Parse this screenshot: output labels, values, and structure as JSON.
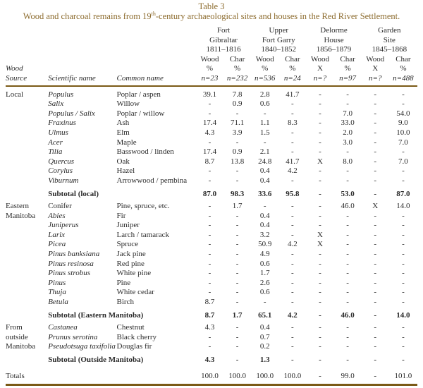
{
  "colors": {
    "accent": "#8d6c2f",
    "rule": "#7b5a16",
    "text": "#2a2a2a"
  },
  "page": {
    "title": "Table 3",
    "subtitle_pre": "Wood and charcoal remains from 19",
    "subtitle_sup": "th",
    "subtitle_post": "-century archaeological sites and houses in the Red River Settlement."
  },
  "header": {
    "wood_label": "Wood",
    "source_label": "Source",
    "scientific_label": "Scientific name",
    "common_label": "Common name",
    "sites": [
      {
        "line1": "Fort",
        "line2": "Gibraltar",
        "years": "1811–1816",
        "cols": [
          {
            "type": "Wood",
            "unit": "%",
            "n": "n=23"
          },
          {
            "type": "Char",
            "unit": "%",
            "n": "n=232"
          }
        ]
      },
      {
        "line1": "Upper",
        "line2": "Fort Garry",
        "years": "1840–1852",
        "cols": [
          {
            "type": "Wood",
            "unit": "%",
            "n": "n=536"
          },
          {
            "type": "Char",
            "unit": "%",
            "n": "n=24"
          }
        ]
      },
      {
        "line1": "Delorme",
        "line2": "House",
        "years": "1856–1879",
        "cols": [
          {
            "type": "Wood",
            "unit": "X",
            "n": "n=?"
          },
          {
            "type": "Char",
            "unit": "%",
            "n": "n=97"
          }
        ]
      },
      {
        "line1": "Garden",
        "line2": "Site",
        "years": "1845–1868",
        "cols": [
          {
            "type": "Wood",
            "unit": "X",
            "n": "n=?"
          },
          {
            "type": "Char",
            "unit": "%",
            "n": "n=488"
          }
        ]
      }
    ]
  },
  "body": {
    "rows": [
      {
        "style": "species",
        "source": "Local",
        "sci": "Populus",
        "italic": true,
        "common": "Poplar / aspen",
        "values": [
          "39.1",
          "7.8",
          "2.8",
          "41.7",
          "-",
          "-",
          "-",
          "-"
        ]
      },
      {
        "style": "species",
        "source": "",
        "sci": "Salix",
        "italic": true,
        "common": "Willow",
        "values": [
          "-",
          "0.9",
          "0.6",
          "-",
          "-",
          "-",
          "-",
          "-"
        ]
      },
      {
        "style": "species",
        "source": "",
        "sci": "Populus / Salix",
        "italic": true,
        "common": "Poplar / willow",
        "values": [
          "-",
          "-",
          "-",
          "-",
          "-",
          "7.0",
          "-",
          "54.0"
        ]
      },
      {
        "style": "species",
        "source": "",
        "sci": "Fraxinus",
        "italic": true,
        "common": "Ash",
        "values": [
          "17.4",
          "71.1",
          "1.1",
          "8.3",
          "-",
          "33.0",
          "-",
          "9.0"
        ]
      },
      {
        "style": "species",
        "source": "",
        "sci": "Ulmus",
        "italic": true,
        "common": "Elm",
        "values": [
          "4.3",
          "3.9",
          "1.5",
          "-",
          "-",
          "2.0",
          "-",
          "10.0"
        ]
      },
      {
        "style": "species",
        "source": "",
        "sci": "Acer",
        "italic": true,
        "common": "Maple",
        "values": [
          "-",
          "-",
          "-",
          "-",
          "-",
          "3.0",
          "-",
          "7.0"
        ]
      },
      {
        "style": "species",
        "source": "",
        "sci": "Tilia",
        "italic": true,
        "common": "Basswood / linden",
        "values": [
          "17.4",
          "0.9",
          "2.1",
          "-",
          "-",
          "-",
          "-",
          "-"
        ]
      },
      {
        "style": "species",
        "source": "",
        "sci": "Quercus",
        "italic": true,
        "common": "Oak",
        "values": [
          "8.7",
          "13.8",
          "24.8",
          "41.7",
          "X",
          "8.0",
          "-",
          "7.0"
        ]
      },
      {
        "style": "species",
        "source": "",
        "sci": "Corylus",
        "italic": true,
        "common": "Hazel",
        "values": [
          "-",
          "-",
          "0.4",
          "4.2",
          "-",
          "-",
          "-",
          "-"
        ]
      },
      {
        "style": "species",
        "source": "",
        "sci": "Viburnum",
        "italic": true,
        "common": "Arrowwood / pembina",
        "values": [
          "-",
          "-",
          "0.4",
          "-",
          "-",
          "-",
          "-",
          "-"
        ]
      },
      {
        "style": "subtotal",
        "source": "",
        "label": "Subtotal (local)",
        "values": [
          "87.0",
          "98.3",
          "33.6",
          "95.8",
          "-",
          "53.0",
          "-",
          "87.0"
        ]
      },
      {
        "style": "species",
        "source": "Eastern",
        "sci": "Conifer",
        "italic": false,
        "common": "Pine, spruce, etc.",
        "values": [
          "-",
          "1.7",
          "-",
          "-",
          "-",
          "46.0",
          "X",
          "14.0"
        ]
      },
      {
        "style": "species",
        "source": "Manitoba",
        "sci": "Abies",
        "italic": true,
        "common": "Fir",
        "values": [
          "-",
          "-",
          "0.4",
          "-",
          "-",
          "-",
          "-",
          "-"
        ]
      },
      {
        "style": "species",
        "source": "",
        "sci": "Juniperus",
        "italic": true,
        "common": "Juniper",
        "values": [
          "-",
          "-",
          "0.4",
          "-",
          "-",
          "-",
          "-",
          "-"
        ]
      },
      {
        "style": "species",
        "source": "",
        "sci": "Larix",
        "italic": true,
        "common": "Larch / tamarack",
        "values": [
          "-",
          "-",
          "3.2",
          "-",
          "X",
          "-",
          "-",
          "-"
        ]
      },
      {
        "style": "species",
        "source": "",
        "sci": "Picea",
        "italic": true,
        "common": "Spruce",
        "values": [
          "-",
          "-",
          "50.9",
          "4.2",
          "X",
          "-",
          "-",
          "-"
        ]
      },
      {
        "style": "species",
        "source": "",
        "sci": "Pinus banksiana",
        "italic": true,
        "common": "Jack pine",
        "values": [
          "-",
          "-",
          "4.9",
          "-",
          "-",
          "-",
          "-",
          "-"
        ]
      },
      {
        "style": "species",
        "source": "",
        "sci": "Pinus resinosa",
        "italic": true,
        "common": "Red pine",
        "values": [
          "-",
          "-",
          "0.6",
          "-",
          "-",
          "-",
          "-",
          "-"
        ]
      },
      {
        "style": "species",
        "source": "",
        "sci": "Pinus strobus",
        "italic": true,
        "common": "White pine",
        "values": [
          "-",
          "-",
          "1.7",
          "-",
          "-",
          "-",
          "-",
          "-"
        ]
      },
      {
        "style": "species",
        "source": "",
        "sci": "Pinus",
        "italic": true,
        "common": "Pine",
        "values": [
          "-",
          "-",
          "2.6",
          "-",
          "-",
          "-",
          "-",
          "-"
        ]
      },
      {
        "style": "species",
        "source": "",
        "sci": "Thuja",
        "italic": true,
        "common": "White cedar",
        "values": [
          "-",
          "-",
          "0.6",
          "-",
          "-",
          "-",
          "-",
          "-"
        ]
      },
      {
        "style": "species",
        "source": "",
        "sci": "Betula",
        "italic": true,
        "common": "Birch",
        "values": [
          "8.7",
          "-",
          "-",
          "-",
          "-",
          "-",
          "-",
          "-"
        ]
      },
      {
        "style": "subtotal",
        "source": "",
        "label": "Subtotal (Eastern Manitoba)",
        "values": [
          "8.7",
          "1.7",
          "65.1",
          "4.2",
          "-",
          "46.0",
          "-",
          "14.0"
        ]
      },
      {
        "style": "species",
        "source": "From",
        "sci": "Castanea",
        "italic": true,
        "common": "Chestnut",
        "values": [
          "4.3",
          "-",
          "0.4",
          "-",
          "-",
          "-",
          "-",
          "-"
        ]
      },
      {
        "style": "species",
        "source": "outside",
        "sci": "Prunus serotina",
        "italic": true,
        "common": "Black cherry",
        "values": [
          "-",
          "-",
          "0.7",
          "-",
          "-",
          "-",
          "-",
          "-"
        ]
      },
      {
        "style": "species",
        "source": "Manitoba",
        "sci": "Pseudotsuga taxifolia",
        "italic": true,
        "common": "Douglas fir",
        "values": [
          "-",
          "-",
          "0.2",
          "-",
          "-",
          "-",
          "-",
          "-"
        ]
      },
      {
        "style": "subtotal",
        "source": "",
        "label": "Subtotal (Outside Manitoba)",
        "values": [
          "4.3",
          "-",
          "1.3",
          "-",
          "-",
          "-",
          "-",
          "-"
        ]
      },
      {
        "style": "totals",
        "source": "Totals",
        "sci": "",
        "italic": false,
        "common": "",
        "values": [
          "100.0",
          "100.0",
          "100.0",
          "100.0",
          "-",
          "99.0",
          "-",
          "101.0"
        ]
      }
    ]
  }
}
